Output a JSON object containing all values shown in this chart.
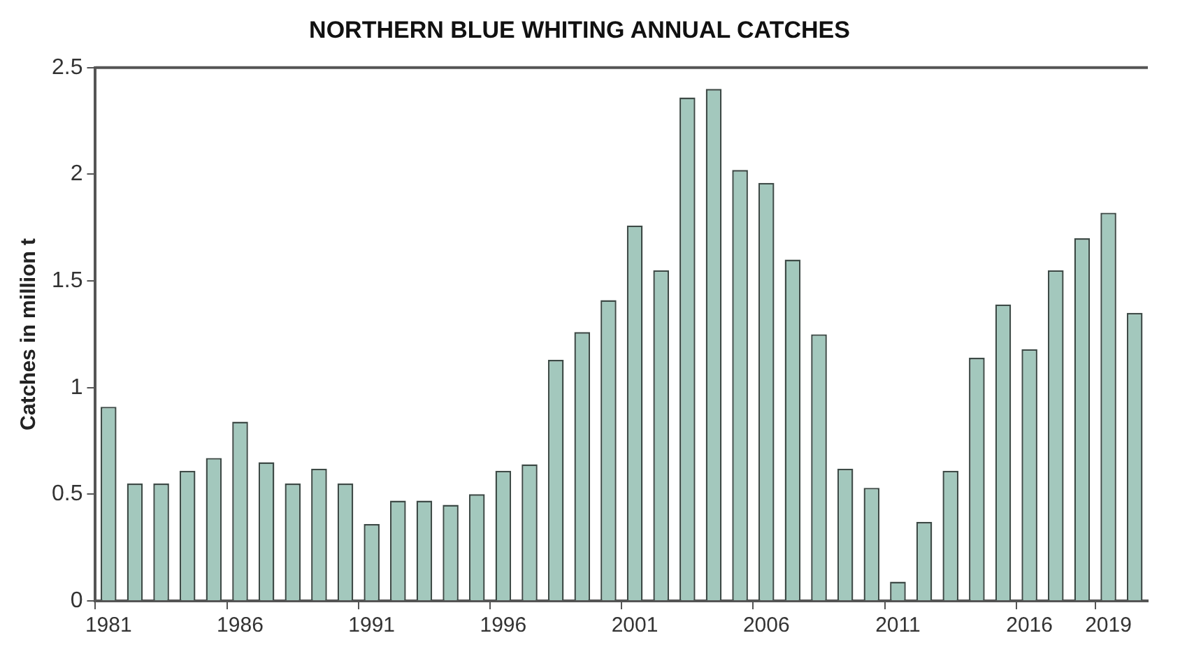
{
  "chart_data": {
    "type": "bar",
    "title": "NORTHERN BLUE WHITING ANNUAL CATCHES",
    "ylabel": "Catches in million t",
    "categories": [
      "1981",
      null,
      null,
      null,
      null,
      "1986",
      null,
      null,
      null,
      null,
      "1991",
      null,
      null,
      null,
      null,
      "1996",
      null,
      null,
      null,
      null,
      "2001",
      null,
      null,
      null,
      null,
      "2006",
      null,
      null,
      null,
      null,
      "2011",
      null,
      null,
      null,
      null,
      "2016",
      null,
      null,
      "2019",
      null
    ],
    "values": [
      0.91,
      0.55,
      0.55,
      0.61,
      0.67,
      0.84,
      0.65,
      0.55,
      0.62,
      0.55,
      0.36,
      0.47,
      0.47,
      0.45,
      0.5,
      0.61,
      0.64,
      1.13,
      1.26,
      1.41,
      1.76,
      1.55,
      2.36,
      2.4,
      2.02,
      1.96,
      1.6,
      1.25,
      0.62,
      0.53,
      0.09,
      0.37,
      0.61,
      1.14,
      1.39,
      1.18,
      1.55,
      1.7,
      1.82,
      1.35
    ],
    "color": "#a3c8bd",
    "ylim": [
      0,
      2.5
    ],
    "yticks": [
      0,
      0.5,
      1,
      1.5,
      2,
      2.5
    ],
    "grid": false,
    "legend": false
  }
}
